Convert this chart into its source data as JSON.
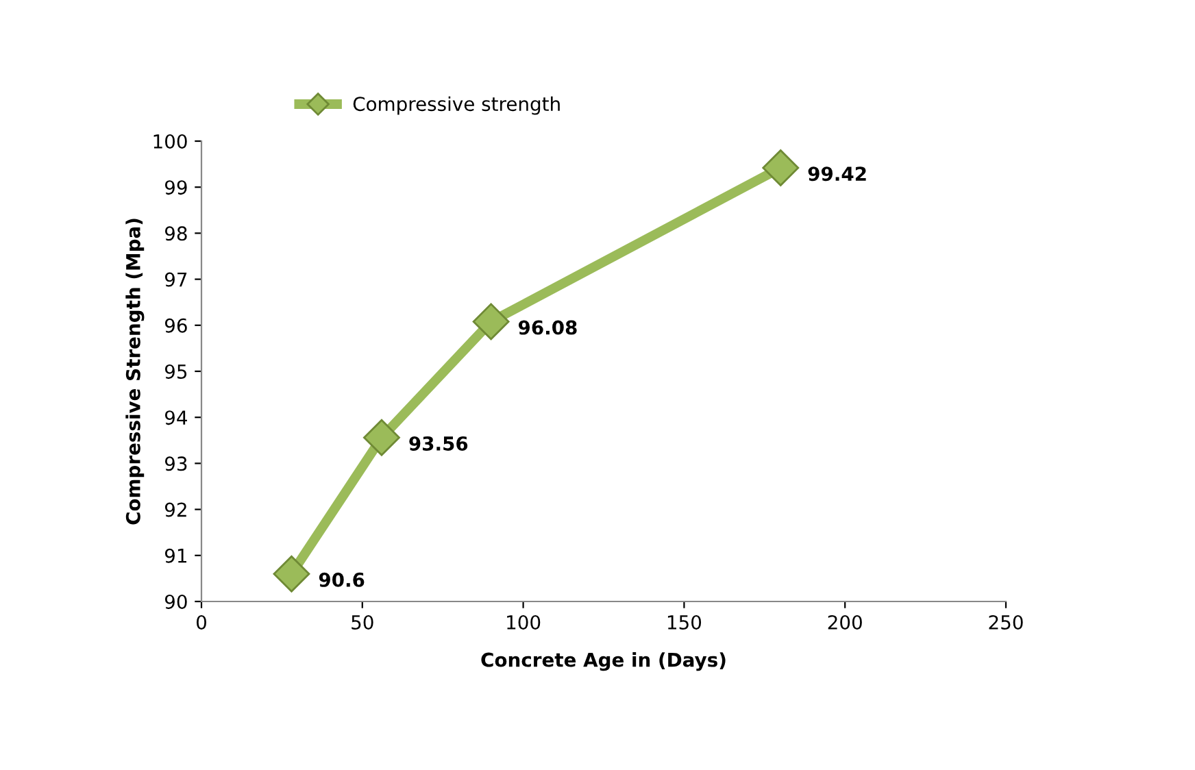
{
  "chart_data": {
    "type": "line",
    "xlabel": "Concrete Age in (Days)",
    "ylabel": "Compressive Strength (Mpa)",
    "x": [
      28,
      56,
      90,
      180
    ],
    "series": [
      {
        "name": "Compressive strength",
        "color": "#9bbb59",
        "values": [
          90.6,
          93.56,
          96.08,
          99.42
        ]
      }
    ],
    "xlim": [
      0,
      250
    ],
    "xticks": [
      0,
      50,
      100,
      150,
      200,
      250
    ],
    "ylim": [
      90,
      100
    ],
    "yticks": [
      90,
      91,
      92,
      93,
      94,
      95,
      96,
      97,
      98,
      99,
      100
    ],
    "marker": "diamond",
    "line_style": "solid",
    "data_labels": true,
    "grid": false,
    "legend": "top left"
  }
}
